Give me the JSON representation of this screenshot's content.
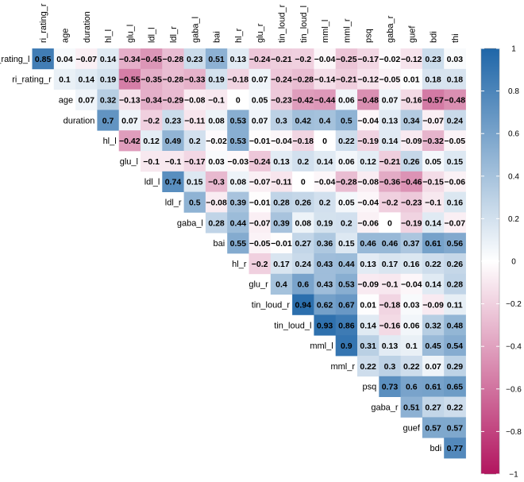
{
  "chart_data": {
    "type": "heatmap",
    "subtype": "correlation-matrix-upper-triangle",
    "variables": [
      "ri_rating_l",
      "ri_rating_r",
      "age",
      "duration",
      "hl_l",
      "glu_l",
      "ldl_l",
      "ldl_r",
      "gaba_l",
      "bai",
      "hl_r",
      "glu_r",
      "tin_loud_r",
      "tin_loud_l",
      "mml_l",
      "mml_r",
      "psq",
      "gaba_r",
      "guef",
      "bdi",
      "thi"
    ],
    "matrix": [
      [
        0.85,
        0.04,
        -0.07,
        0.14,
        -0.34,
        -0.45,
        -0.28,
        0.23,
        0.51,
        0.13,
        -0.24,
        -0.21,
        -0.2,
        -0.04,
        -0.25,
        -0.17,
        -0.02,
        -0.12,
        0.23,
        0.03
      ],
      [
        0.1,
        0.14,
        0.19,
        -0.55,
        -0.35,
        -0.28,
        -0.33,
        0.19,
        -0.18,
        0.07,
        -0.24,
        -0.28,
        -0.14,
        -0.21,
        -0.12,
        -0.05,
        0.01,
        0.18,
        0.18
      ],
      [
        0.07,
        0.32,
        -0.13,
        -0.34,
        -0.29,
        -0.08,
        -0.1,
        0,
        0.05,
        -0.23,
        -0.42,
        -0.44,
        0.06,
        -0.48,
        0.07,
        -0.16,
        -0.57,
        -0.48
      ],
      [
        0.7,
        0.07,
        -0.2,
        0.23,
        -0.11,
        0.08,
        0.53,
        0.07,
        0.3,
        0.42,
        0.4,
        0.5,
        -0.04,
        0.13,
        0.34,
        -0.07,
        0.24
      ],
      [
        -0.42,
        0.12,
        0.49,
        0.2,
        -0.02,
        0.53,
        -0.01,
        -0.04,
        -0.18,
        0,
        0.22,
        -0.19,
        0.14,
        -0.09,
        -0.32,
        -0.05
      ],
      [
        -0.1,
        -0.1,
        -0.17,
        0.03,
        -0.03,
        -0.24,
        0.13,
        0.2,
        0.14,
        0.06,
        0.12,
        -0.21,
        0.26,
        0.05,
        0.15
      ],
      [
        0.74,
        0.15,
        -0.3,
        0.08,
        -0.07,
        -0.11,
        0,
        -0.04,
        -0.28,
        -0.08,
        -0.36,
        -0.46,
        -0.15,
        -0.06
      ],
      [
        0.5,
        -0.08,
        0.39,
        -0.01,
        0.28,
        0.26,
        0.2,
        0.05,
        -0.04,
        -0.2,
        -0.23,
        -0.1,
        0.16
      ],
      [
        0.28,
        0.44,
        -0.07,
        0.39,
        0.08,
        0.19,
        0.2,
        -0.06,
        0,
        -0.19,
        0.14,
        -0.07
      ],
      [
        0.55,
        -0.05,
        -0.01,
        0.27,
        0.36,
        0.15,
        0.46,
        0.46,
        0.37,
        0.61,
        0.56
      ],
      [
        -0.2,
        0.17,
        0.24,
        0.43,
        0.44,
        0.13,
        0.17,
        0.16,
        0.22,
        0.26
      ],
      [
        0.4,
        0.6,
        0.43,
        0.53,
        -0.09,
        -0.1,
        -0.04,
        0.14,
        0.28
      ],
      [
        0.94,
        0.62,
        0.67,
        0.01,
        -0.18,
        0.03,
        -0.09,
        0.11
      ],
      [
        0.93,
        0.86,
        0.14,
        -0.16,
        0.06,
        0.32,
        0.48
      ],
      [
        0.9,
        0.31,
        0.13,
        0.1,
        0.45,
        0.54
      ],
      [
        0.22,
        0.3,
        0.22,
        0.07,
        0.29
      ],
      [
        0.73,
        0.6,
        0.61,
        0.65
      ],
      [
        0.51,
        0.27,
        0.22
      ],
      [
        0.57,
        0.57
      ],
      [
        0.77
      ]
    ],
    "scale": {
      "min": -1,
      "max": 1,
      "ticks": [
        1,
        0.8,
        0.6,
        0.4,
        0.2,
        0,
        -0.2,
        -0.4,
        -0.6,
        -0.8,
        -1
      ],
      "tick_labels": [
        "1",
        "0.8",
        "0.6",
        "0.4",
        "0.2",
        "0",
        "−0.2",
        "−0.4",
        "−0.6",
        "−0.8",
        "−1"
      ],
      "colors": {
        "negative": "#b2155f",
        "zero": "#ffffff",
        "positive": "#1f66a8"
      }
    },
    "legend": "right"
  }
}
